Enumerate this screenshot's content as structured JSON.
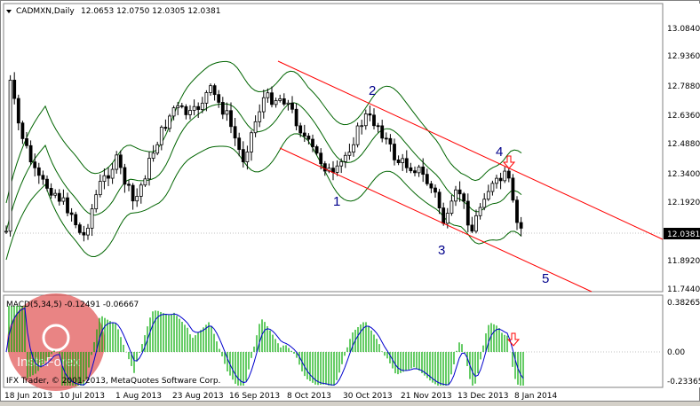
{
  "header": {
    "symbol": "CADMXN,Daily",
    "ohlc": "12.0653 12.0750 12.0305 12.0381",
    "dropdown_icon": "triangle-down-icon"
  },
  "price_axis": {
    "ticks": [
      "13.0840",
      "12.9360",
      "12.7880",
      "12.6360",
      "12.4880",
      "12.3400",
      "12.1920",
      "11.8920",
      "11.7440"
    ],
    "current_price_label": "12.0381"
  },
  "macd": {
    "label": "MACD(5,34,5) -0.12491 -0.06667",
    "ticks": [
      "0.38265",
      "0.00",
      "-0.23365"
    ]
  },
  "time_axis": {
    "labels": [
      "18 Jun 2013",
      "10 Jul 2013",
      "1 Aug 2013",
      "23 Aug 2013",
      "16 Sep 2013",
      "8 Oct 2013",
      "30 Oct 2013",
      "21 Nov 2013",
      "13 Dec 2013",
      "8 Jan 2014"
    ]
  },
  "wave_labels": [
    "1",
    "2",
    "3",
    "4",
    "5"
  ],
  "copyright": "IFX Trader, © 2001-2013, MetaQuotes Software Corp.",
  "watermark": "InstaForex",
  "colors": {
    "candle": "#000000",
    "bollinger": "#006400",
    "channel": "#ff0000",
    "macd_hist": "#00aa00",
    "macd_signal": "#0000cd",
    "wave_labels": "#00008b",
    "price_label_bg": "#000000"
  },
  "chart_data": {
    "type": "candlestick",
    "instrument": "CADMXN",
    "timeframe": "Daily",
    "ohlc_last": {
      "open": 12.0653,
      "high": 12.075,
      "low": 12.0305,
      "close": 12.0381
    },
    "ylim": [
      11.7,
      13.15
    ],
    "indicators": [
      "Bollinger Bands",
      "MACD(5,34,5)"
    ],
    "macd": {
      "main": -0.12491,
      "signal": -0.06667,
      "ylim": [
        -0.26,
        0.41
      ]
    },
    "channel": "descending",
    "annotations": [
      "wave 1",
      "wave 2",
      "wave 3",
      "wave 4",
      "wave 5",
      "down arrows at wave 4 and on MACD"
    ]
  }
}
